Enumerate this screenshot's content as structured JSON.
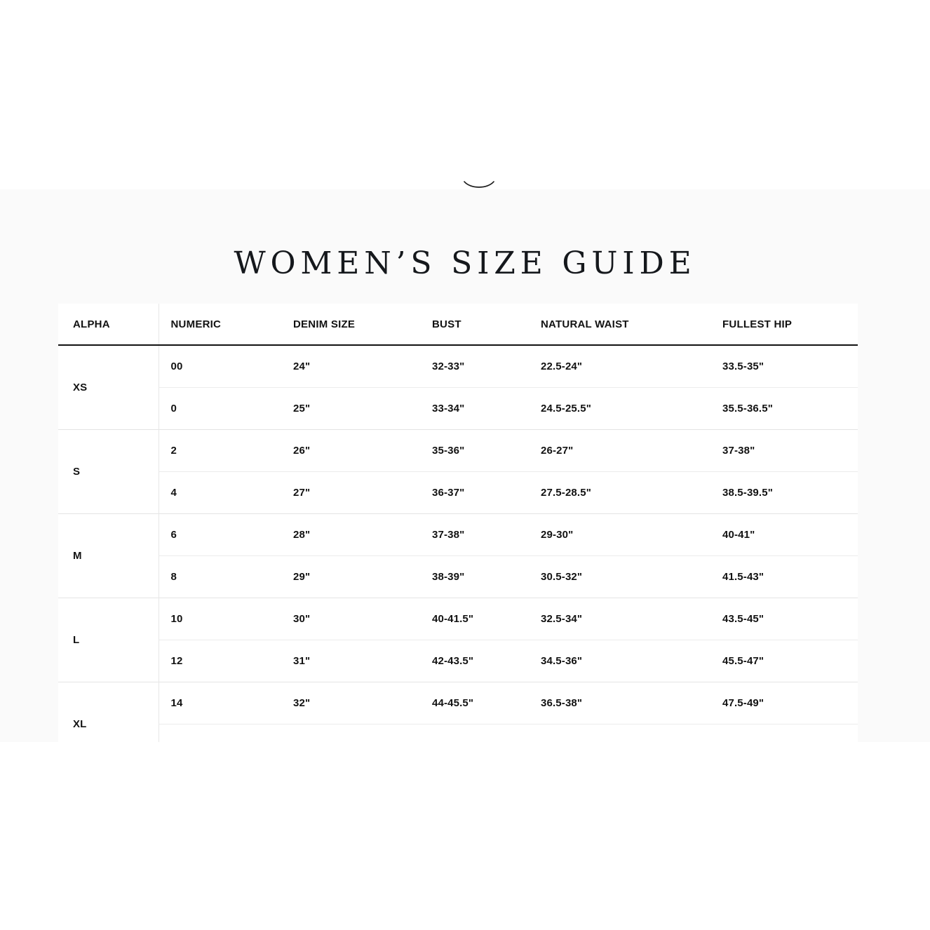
{
  "page": {
    "title": "WOMEN’S SIZE GUIDE"
  },
  "icons": {
    "logo_bottom_arc": "partial brand logo curve cut off at top of section"
  },
  "colors": {
    "text": "#121212",
    "section_bg": "#fafafa",
    "table_bg": "#ffffff",
    "header_rule": "#121212",
    "group_divider": "#e4e4e4",
    "row_divider": "#ececec",
    "col_divider": "#e7e7e7"
  },
  "table": {
    "columns": [
      "ALPHA",
      "NUMERIC",
      "DENIM SIZE",
      "BUST",
      "NATURAL WAIST",
      "FULLEST HIP"
    ],
    "groups": [
      {
        "alpha": "XS",
        "rows": [
          [
            "00",
            "24\"",
            "32-33\"",
            "22.5-24\"",
            "33.5-35\""
          ],
          [
            "0",
            "25\"",
            "33-34\"",
            "24.5-25.5\"",
            "35.5-36.5\""
          ]
        ]
      },
      {
        "alpha": "S",
        "rows": [
          [
            "2",
            "26\"",
            "35-36\"",
            "26-27\"",
            "37-38\""
          ],
          [
            "4",
            "27\"",
            "36-37\"",
            "27.5-28.5\"",
            "38.5-39.5\""
          ]
        ]
      },
      {
        "alpha": "M",
        "rows": [
          [
            "6",
            "28\"",
            "37-38\"",
            "29-30\"",
            "40-41\""
          ],
          [
            "8",
            "29\"",
            "38-39\"",
            "30.5-32\"",
            "41.5-43\""
          ]
        ]
      },
      {
        "alpha": "L",
        "rows": [
          [
            "10",
            "30\"",
            "40-41.5\"",
            "32.5-34\"",
            "43.5-45\""
          ],
          [
            "12",
            "31\"",
            "42-43.5\"",
            "34.5-36\"",
            "45.5-47\""
          ]
        ]
      },
      {
        "alpha": "XL",
        "rows": [
          [
            "14",
            "32\"",
            "44-45.5\"",
            "36.5-38\"",
            "47.5-49\""
          ],
          [
            "",
            "",
            "",
            "",
            ""
          ]
        ]
      }
    ]
  }
}
